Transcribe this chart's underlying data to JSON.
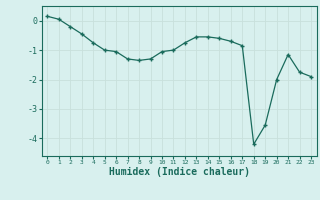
{
  "x": [
    0,
    1,
    2,
    3,
    4,
    5,
    6,
    7,
    8,
    9,
    10,
    11,
    12,
    13,
    14,
    15,
    16,
    17,
    18,
    19,
    20,
    21,
    22,
    23
  ],
  "y": [
    0.15,
    0.05,
    -0.2,
    -0.45,
    -0.75,
    -1.0,
    -1.05,
    -1.3,
    -1.35,
    -1.3,
    -1.05,
    -1.0,
    -0.75,
    -0.55,
    -0.55,
    -0.6,
    -0.7,
    -0.85,
    -4.2,
    -3.55,
    -2.0,
    -1.15,
    -1.75,
    -1.9
  ],
  "line_color": "#1a6b5c",
  "marker": "+",
  "marker_size": 3,
  "bg_color": "#d8f0ee",
  "grid_color": "#c8e0dc",
  "axis_color": "#1a6b5c",
  "tick_color": "#1a6b5c",
  "xlabel": "Humidex (Indice chaleur)",
  "xlim": [
    -0.5,
    23.5
  ],
  "ylim": [
    -4.6,
    0.5
  ],
  "yticks": [
    0,
    -1,
    -2,
    -3,
    -4
  ],
  "xticks": [
    0,
    1,
    2,
    3,
    4,
    5,
    6,
    7,
    8,
    9,
    10,
    11,
    12,
    13,
    14,
    15,
    16,
    17,
    18,
    19,
    20,
    21,
    22,
    23
  ]
}
